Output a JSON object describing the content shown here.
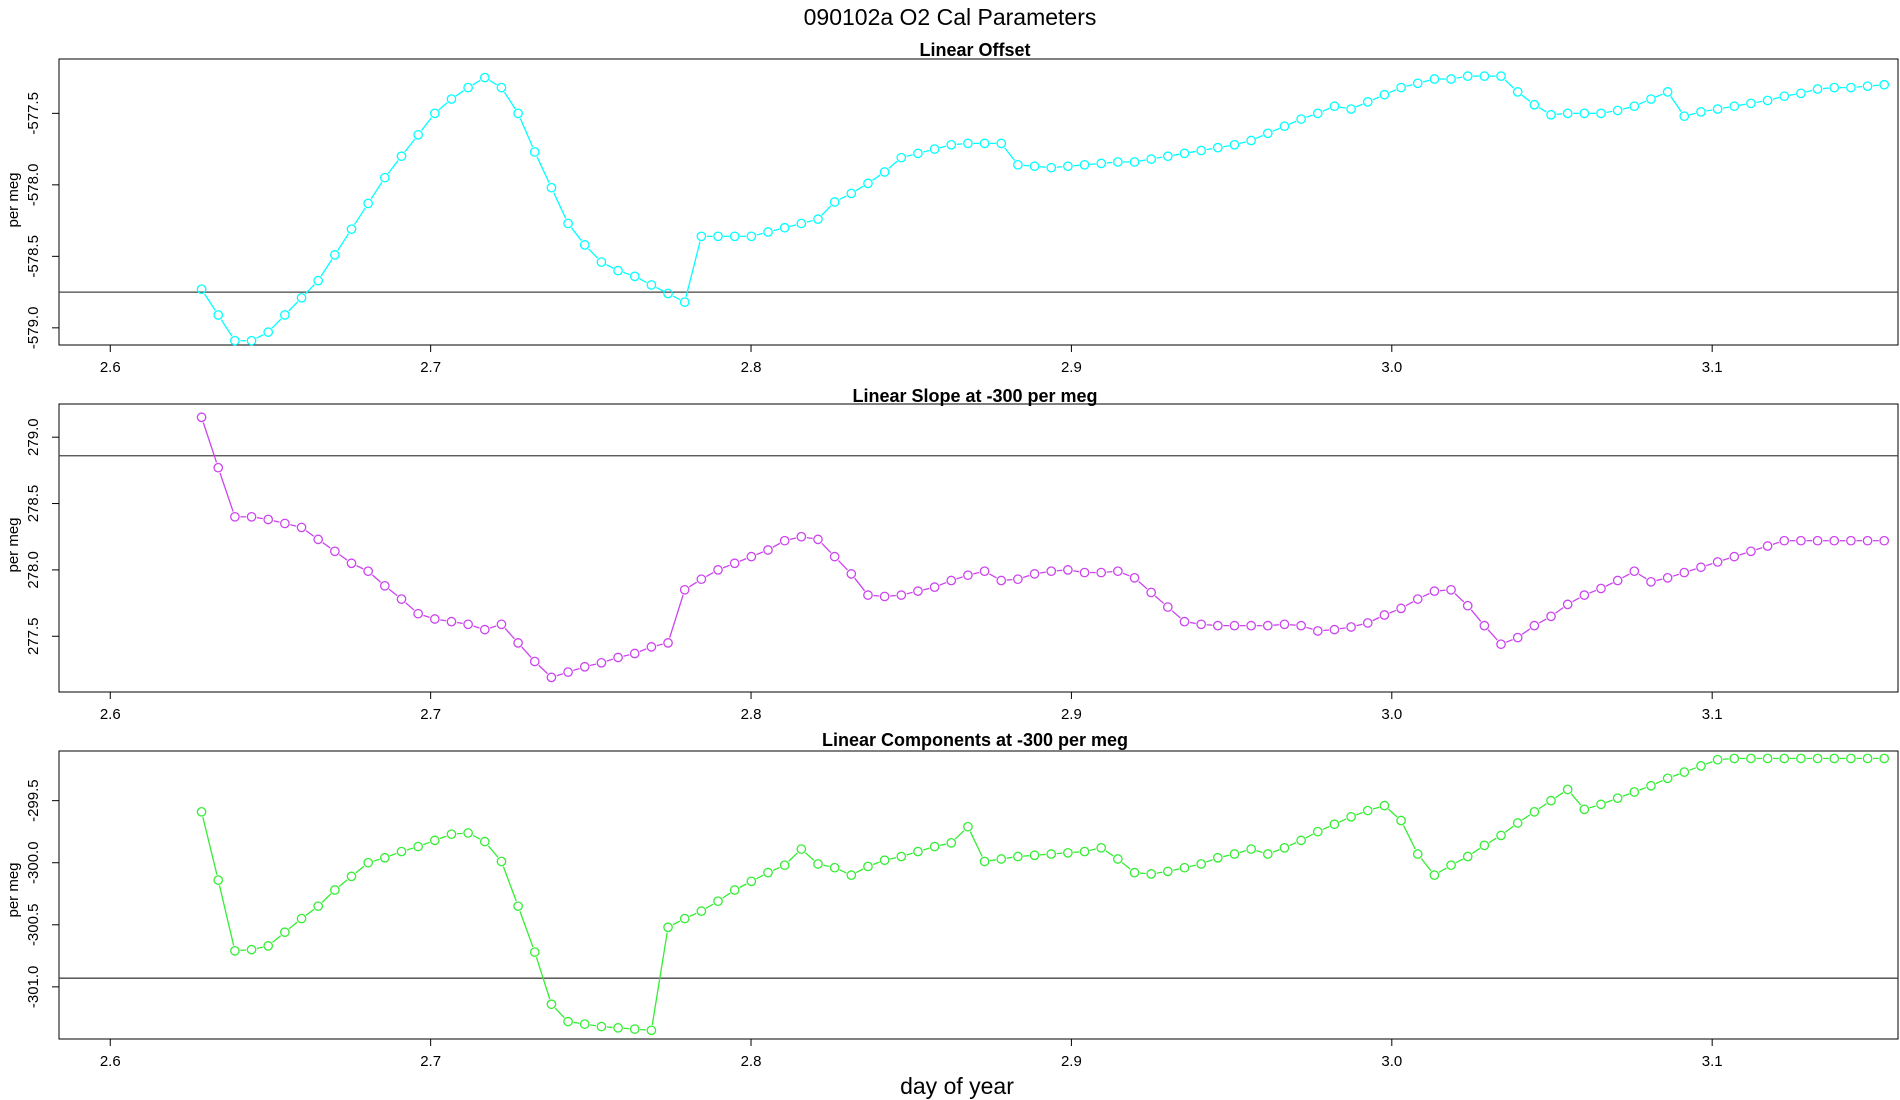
{
  "figure": {
    "title": "090102a   O2 Cal Parameters",
    "xlabel": "day of year"
  },
  "chart_data": [
    {
      "type": "line",
      "title": "Linear Offset",
      "xlabel": "",
      "ylabel": "per meg",
      "color": "#00ffff",
      "xlim": [
        2.584,
        3.158
      ],
      "ylim": [
        -579.12,
        -577.12
      ],
      "xticks": [
        2.6,
        2.7,
        2.8,
        2.9,
        3.0,
        3.1
      ],
      "xtick_labels": [
        "2.6",
        "2.7",
        "2.8",
        "2.9",
        "3.0",
        "3.1"
      ],
      "yticks": [
        -579.0,
        -578.5,
        -578.0,
        -577.5
      ],
      "ytick_labels": [
        "-579.0",
        "-578.5",
        "-578.0",
        "-577.5"
      ],
      "hline": -578.75,
      "x": [
        2.6285,
        2.6337,
        2.6389,
        2.6441,
        2.6493,
        2.6545,
        2.6597,
        2.6649,
        2.6701,
        2.6753,
        2.6805,
        2.6857,
        2.6909,
        2.6961,
        2.7013,
        2.7065,
        2.7117,
        2.7169,
        2.7221,
        2.7273,
        2.7325,
        2.7377,
        2.7429,
        2.7481,
        2.7533,
        2.7585,
        2.7637,
        2.7689,
        2.7741,
        2.7793,
        2.7845,
        2.7897,
        2.7949,
        2.8001,
        2.8053,
        2.8105,
        2.8157,
        2.8209,
        2.8261,
        2.8313,
        2.8365,
        2.8417,
        2.8469,
        2.8521,
        2.8573,
        2.8625,
        2.8677,
        2.8729,
        2.8781,
        2.8833,
        2.8885,
        2.8937,
        2.8989,
        2.9041,
        2.9093,
        2.9145,
        2.9197,
        2.9249,
        2.9301,
        2.9353,
        2.9405,
        2.9457,
        2.9509,
        2.9561,
        2.9613,
        2.9665,
        2.9717,
        2.9769,
        2.9821,
        2.9873,
        2.9925,
        2.9977,
        3.0029,
        3.0081,
        3.0133,
        3.0185,
        3.0237,
        3.0289,
        3.0341,
        3.0393,
        3.0445,
        3.0497,
        3.0549,
        3.0601,
        3.0653,
        3.0705,
        3.0757,
        3.0809,
        3.0861,
        3.0913,
        3.0965,
        3.1017,
        3.1069,
        3.1121,
        3.1173,
        3.1225,
        3.1277,
        3.1329,
        3.1381,
        3.1433,
        3.1485,
        3.1537
      ],
      "y": [
        -578.73,
        -578.91,
        -579.09,
        -579.09,
        -579.03,
        -578.91,
        -578.79,
        -578.67,
        -578.49,
        -578.31,
        -578.13,
        -577.95,
        -577.8,
        -577.65,
        -577.5,
        -577.4,
        -577.32,
        -577.25,
        -577.32,
        -577.5,
        -577.77,
        -578.02,
        -578.27,
        -578.42,
        -578.54,
        -578.6,
        -578.64,
        -578.7,
        -578.76,
        -578.82,
        -578.36,
        -578.36,
        -578.36,
        -578.36,
        -578.33,
        -578.3,
        -578.27,
        -578.24,
        -578.12,
        -578.06,
        -577.99,
        -577.91,
        -577.81,
        -577.78,
        -577.75,
        -577.72,
        -577.71,
        -577.71,
        -577.71,
        -577.86,
        -577.87,
        -577.88,
        -577.87,
        -577.86,
        -577.85,
        -577.84,
        -577.84,
        -577.82,
        -577.8,
        -577.78,
        -577.76,
        -577.74,
        -577.72,
        -577.69,
        -577.64,
        -577.59,
        -577.54,
        -577.5,
        -577.45,
        -577.47,
        -577.42,
        -577.37,
        -577.32,
        -577.29,
        -577.26,
        -577.26,
        -577.24,
        -577.24,
        -577.24,
        -577.35,
        -577.44,
        -577.51,
        -577.5,
        -577.5,
        -577.5,
        -577.48,
        -577.45,
        -577.4,
        -577.35,
        -577.52,
        -577.49,
        -577.47,
        -577.45,
        -577.43,
        -577.41,
        -577.38,
        -577.36,
        -577.33,
        -577.32,
        -577.32,
        -577.31,
        -577.3
      ]
    },
    {
      "type": "line",
      "title": "Linear Slope at -300 per meg",
      "xlabel": "",
      "ylabel": "per meg",
      "color": "#cc44ee",
      "xlim": [
        2.584,
        3.158
      ],
      "ylim": [
        277.08,
        279.25
      ],
      "xticks": [
        2.6,
        2.7,
        2.8,
        2.9,
        3.0,
        3.1
      ],
      "xtick_labels": [
        "2.6",
        "2.7",
        "2.8",
        "2.9",
        "3.0",
        "3.1"
      ],
      "yticks": [
        277.5,
        278.0,
        278.5,
        279.0
      ],
      "ytick_labels": [
        "277.5",
        "278.0",
        "278.5",
        "279.0"
      ],
      "hline": 278.86,
      "x": [
        2.6285,
        2.6337,
        2.6389,
        2.6441,
        2.6493,
        2.6545,
        2.6597,
        2.6649,
        2.6701,
        2.6753,
        2.6805,
        2.6857,
        2.6909,
        2.6961,
        2.7013,
        2.7065,
        2.7117,
        2.7169,
        2.7221,
        2.7273,
        2.7325,
        2.7377,
        2.7429,
        2.7481,
        2.7533,
        2.7585,
        2.7637,
        2.7689,
        2.7741,
        2.7793,
        2.7845,
        2.7897,
        2.7949,
        2.8001,
        2.8053,
        2.8105,
        2.8157,
        2.8209,
        2.8261,
        2.8313,
        2.8365,
        2.8417,
        2.8469,
        2.8521,
        2.8573,
        2.8625,
        2.8677,
        2.8729,
        2.8781,
        2.8833,
        2.8885,
        2.8937,
        2.8989,
        2.9041,
        2.9093,
        2.9145,
        2.9197,
        2.9249,
        2.9301,
        2.9353,
        2.9405,
        2.9457,
        2.9509,
        2.9561,
        2.9613,
        2.9665,
        2.9717,
        2.9769,
        2.9821,
        2.9873,
        2.9925,
        2.9977,
        3.0029,
        3.0081,
        3.0133,
        3.0185,
        3.0237,
        3.0289,
        3.0341,
        3.0393,
        3.0445,
        3.0497,
        3.0549,
        3.0601,
        3.0653,
        3.0705,
        3.0757,
        3.0809,
        3.0861,
        3.0913,
        3.0965,
        3.1017,
        3.1069,
        3.1121,
        3.1173,
        3.1225,
        3.1277,
        3.1329,
        3.1381,
        3.1433,
        3.1485,
        3.1537
      ],
      "y": [
        279.15,
        278.77,
        278.4,
        278.4,
        278.38,
        278.35,
        278.32,
        278.23,
        278.14,
        278.05,
        277.99,
        277.88,
        277.78,
        277.67,
        277.63,
        277.61,
        277.59,
        277.55,
        277.59,
        277.45,
        277.31,
        277.19,
        277.23,
        277.27,
        277.3,
        277.34,
        277.37,
        277.42,
        277.45,
        277.85,
        277.93,
        278.0,
        278.05,
        278.1,
        278.15,
        278.22,
        278.25,
        278.23,
        278.1,
        277.97,
        277.81,
        277.8,
        277.81,
        277.84,
        277.87,
        277.92,
        277.96,
        277.99,
        277.92,
        277.93,
        277.97,
        277.99,
        278.0,
        277.98,
        277.98,
        277.99,
        277.94,
        277.83,
        277.72,
        277.61,
        277.59,
        277.58,
        277.58,
        277.58,
        277.58,
        277.59,
        277.58,
        277.54,
        277.55,
        277.57,
        277.6,
        277.66,
        277.71,
        277.78,
        277.84,
        277.85,
        277.73,
        277.58,
        277.44,
        277.49,
        277.58,
        277.65,
        277.74,
        277.81,
        277.86,
        277.92,
        277.99,
        277.91,
        277.94,
        277.98,
        278.02,
        278.06,
        278.1,
        278.14,
        278.18,
        278.22,
        278.22,
        278.22,
        278.22,
        278.22,
        278.22,
        278.22
      ]
    },
    {
      "type": "line",
      "title": "Linear Components at -300 per meg",
      "xlabel": "day of year",
      "ylabel": "per meg",
      "color": "#33ee33",
      "xlim": [
        2.584,
        3.158
      ],
      "ylim": [
        -301.42,
        -299.1
      ],
      "xticks": [
        2.6,
        2.7,
        2.8,
        2.9,
        3.0,
        3.1
      ],
      "xtick_labels": [
        "2.6",
        "2.7",
        "2.8",
        "2.9",
        "3.0",
        "3.1"
      ],
      "yticks": [
        -301.0,
        -300.5,
        -300.0,
        -299.5
      ],
      "ytick_labels": [
        "-301.0",
        "-300.5",
        "-300.0",
        "-299.5"
      ],
      "hline": -300.93,
      "x": [
        2.6285,
        2.6337,
        2.6389,
        2.6441,
        2.6493,
        2.6545,
        2.6597,
        2.6649,
        2.6701,
        2.6753,
        2.6805,
        2.6857,
        2.6909,
        2.6961,
        2.7013,
        2.7065,
        2.7117,
        2.7169,
        2.7221,
        2.7273,
        2.7325,
        2.7377,
        2.7429,
        2.7481,
        2.7533,
        2.7585,
        2.7637,
        2.7689,
        2.7741,
        2.7793,
        2.7845,
        2.7897,
        2.7949,
        2.8001,
        2.8053,
        2.8105,
        2.8157,
        2.8209,
        2.8261,
        2.8313,
        2.8365,
        2.8417,
        2.8469,
        2.8521,
        2.8573,
        2.8625,
        2.8677,
        2.8729,
        2.8781,
        2.8833,
        2.8885,
        2.8937,
        2.8989,
        2.9041,
        2.9093,
        2.9145,
        2.9197,
        2.9249,
        2.9301,
        2.9353,
        2.9405,
        2.9457,
        2.9509,
        2.9561,
        2.9613,
        2.9665,
        2.9717,
        2.9769,
        2.9821,
        2.9873,
        2.9925,
        2.9977,
        3.0029,
        3.0081,
        3.0133,
        3.0185,
        3.0237,
        3.0289,
        3.0341,
        3.0393,
        3.0445,
        3.0497,
        3.0549,
        3.0601,
        3.0653,
        3.0705,
        3.0757,
        3.0809,
        3.0861,
        3.0913,
        3.0965,
        3.1017,
        3.1069,
        3.1121,
        3.1173,
        3.1225,
        3.1277,
        3.1329,
        3.1381,
        3.1433,
        3.1485,
        3.1537
      ],
      "y": [
        -299.59,
        -300.14,
        -300.71,
        -300.7,
        -300.67,
        -300.56,
        -300.45,
        -300.35,
        -300.22,
        -300.11,
        -300.0,
        -299.96,
        -299.91,
        -299.87,
        -299.82,
        -299.77,
        -299.76,
        -299.83,
        -299.99,
        -300.35,
        -300.72,
        -301.14,
        -301.28,
        -301.3,
        -301.32,
        -301.33,
        -301.34,
        -301.35,
        -300.52,
        -300.45,
        -300.39,
        -300.31,
        -300.22,
        -300.15,
        -300.08,
        -300.02,
        -299.89,
        -300.01,
        -300.04,
        -300.1,
        -300.03,
        -299.98,
        -299.95,
        -299.91,
        -299.87,
        -299.84,
        -299.71,
        -299.99,
        -299.97,
        -299.95,
        -299.94,
        -299.93,
        -299.92,
        -299.91,
        -299.88,
        -299.97,
        -300.08,
        -300.09,
        -300.07,
        -300.04,
        -300.01,
        -299.96,
        -299.93,
        -299.89,
        -299.93,
        -299.88,
        -299.82,
        -299.75,
        -299.69,
        -299.63,
        -299.58,
        -299.54,
        -299.66,
        -299.93,
        -300.1,
        -300.02,
        -299.95,
        -299.86,
        -299.78,
        -299.68,
        -299.59,
        -299.5,
        -299.41,
        -299.57,
        -299.53,
        -299.48,
        -299.43,
        -299.38,
        -299.32,
        -299.27,
        -299.22,
        -299.17,
        -299.16,
        -299.16,
        -299.16,
        -299.16,
        -299.16,
        -299.16,
        -299.16,
        -299.16,
        -299.16,
        -299.16
      ]
    }
  ]
}
